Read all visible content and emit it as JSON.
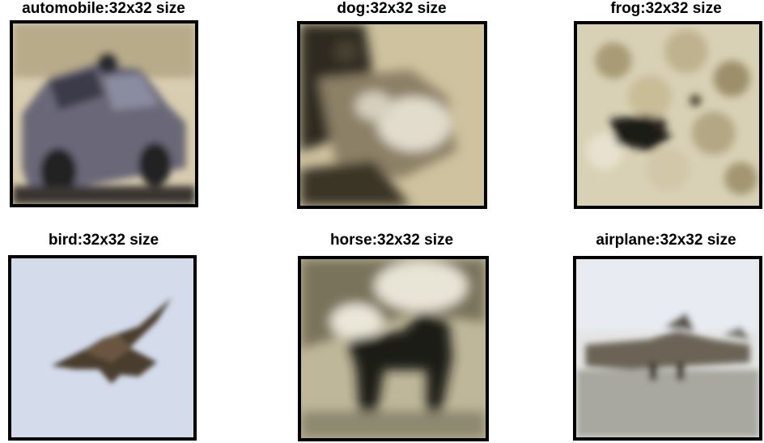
{
  "images": [
    {
      "title": "automobile:32x32 size",
      "subject": "car"
    },
    {
      "title": "dog:32x32 size",
      "subject": "dog"
    },
    {
      "title": "frog:32x32 size",
      "subject": "frog"
    },
    {
      "title": "bird:32x32 size",
      "subject": "bird"
    },
    {
      "title": "horse:32x32 size",
      "subject": "horse"
    },
    {
      "title": "airplane:32x32 size",
      "subject": "airplane"
    }
  ]
}
